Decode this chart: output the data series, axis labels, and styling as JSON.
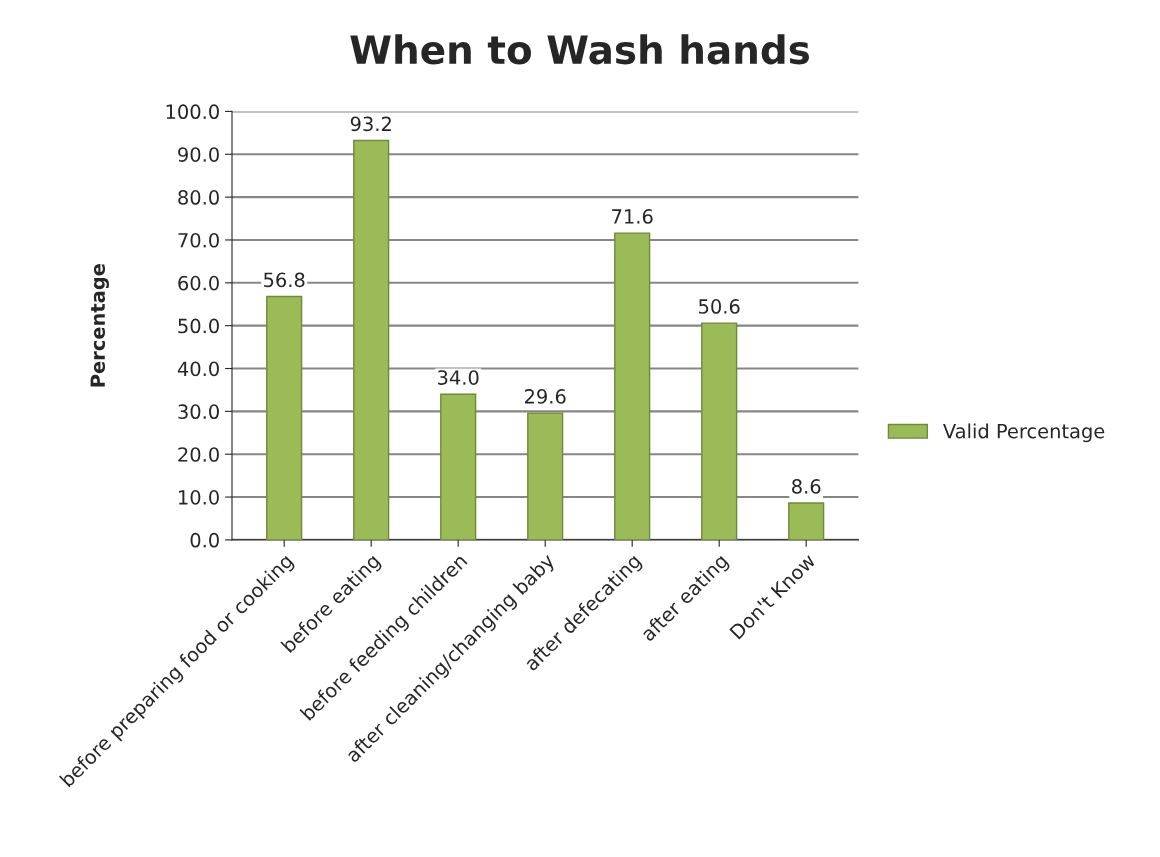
{
  "chart_data": {
    "type": "bar",
    "title": "When to Wash hands",
    "ylabel": "Percentage",
    "categories": [
      "before preparing food or cooking",
      "before eating",
      "before feeding children",
      "after cleaning/changing baby",
      "after defecating",
      "after eating",
      "Don't Know"
    ],
    "series": [
      {
        "name": "Valid Percentage",
        "color": "#9bbb59",
        "values": [
          56.8,
          93.2,
          34.0,
          29.6,
          71.6,
          50.6,
          8.6
        ],
        "value_labels": [
          "56.8",
          "93.2",
          "34.0",
          "29.6",
          "71.6",
          "50.6",
          "8.6"
        ]
      }
    ],
    "ylim": [
      0,
      100
    ],
    "yticks": [
      {
        "value": 0,
        "label": "0.0"
      },
      {
        "value": 10,
        "label": "10.0"
      },
      {
        "value": 20,
        "label": "20.0"
      },
      {
        "value": 30,
        "label": "30.0"
      },
      {
        "value": 40,
        "label": "40.0"
      },
      {
        "value": 50,
        "label": "50.0"
      },
      {
        "value": 60,
        "label": "60.0"
      },
      {
        "value": 70,
        "label": "70.0"
      },
      {
        "value": 80,
        "label": "80.0"
      },
      {
        "value": 90,
        "label": "90.0"
      },
      {
        "value": 100,
        "label": "100.0"
      }
    ],
    "grid": "y",
    "legend": "right"
  }
}
